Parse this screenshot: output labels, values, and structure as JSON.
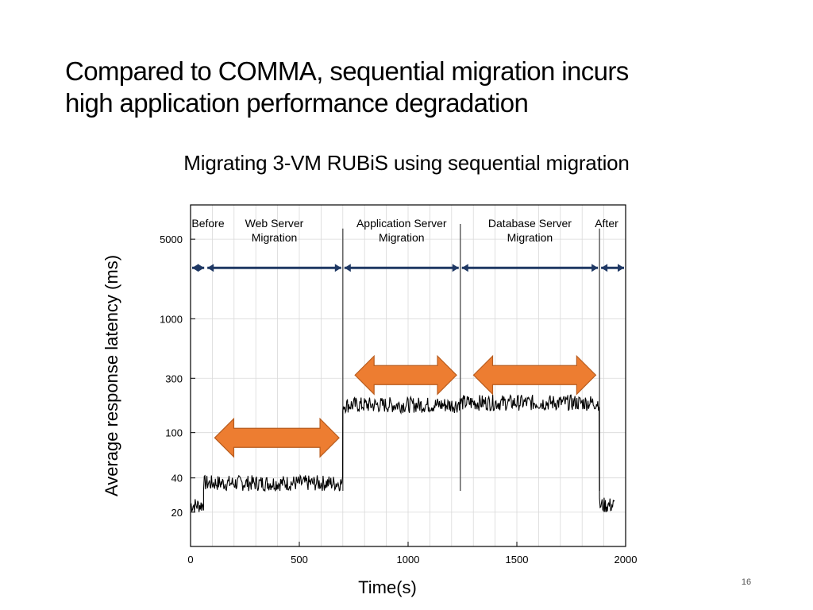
{
  "slide": {
    "title_lines": [
      "Compared to COMMA, sequential migration incurs",
      "high application performance degradation"
    ],
    "caption": "Migrating 3-VM RUBiS using sequential migration",
    "page_number": "16"
  },
  "chart_data": {
    "type": "line",
    "xlabel": "Time(s)",
    "ylabel": "Average response latency (ms)",
    "xlim": [
      0,
      2000
    ],
    "ylim": [
      10,
      10000
    ],
    "yscale": "log",
    "x_ticks": [
      {
        "value": 0,
        "label": "0"
      },
      {
        "value": 500,
        "label": "500"
      },
      {
        "value": 1000,
        "label": "1000"
      },
      {
        "value": 1500,
        "label": "1500"
      },
      {
        "value": 2000,
        "label": "2000"
      }
    ],
    "y_ticks": [
      {
        "value": 20,
        "label": "20"
      },
      {
        "value": 40,
        "label": "40"
      },
      {
        "value": 100,
        "label": "100"
      },
      {
        "value": 300,
        "label": "300"
      },
      {
        "value": 1000,
        "label": "1000"
      },
      {
        "value": 5000,
        "label": "5000"
      }
    ],
    "grid": true,
    "phases": [
      {
        "label": [
          "Before"
        ],
        "start": 0,
        "end": 70
      },
      {
        "label": [
          "Web Server",
          "Migration"
        ],
        "start": 70,
        "end": 700
      },
      {
        "label": [
          "Application Server",
          "Migration"
        ],
        "start": 700,
        "end": 1240
      },
      {
        "label": [
          "Database Server",
          "Migration"
        ],
        "start": 1240,
        "end": 1880
      },
      {
        "label": [
          "After"
        ],
        "start": 1880,
        "end": 2000
      }
    ],
    "phase_arrow_level": 2800,
    "spikes": [
      {
        "x": 700,
        "y": 6200
      },
      {
        "x": 1240,
        "y": 6800
      },
      {
        "x": 1880,
        "y": 6200
      }
    ],
    "series": [
      {
        "segments": [
          {
            "x_start": 0,
            "x_end": 60,
            "mean": 23
          },
          {
            "x_start": 60,
            "x_end": 700,
            "mean": 36
          },
          {
            "x_start": 700,
            "x_end": 1230,
            "mean": 175
          },
          {
            "x_start": 1230,
            "x_end": 1880,
            "mean": 183
          },
          {
            "x_start": 1880,
            "x_end": 1950,
            "mean": 23
          }
        ]
      }
    ],
    "highlight_arrows": [
      {
        "x_start": 60,
        "x_end": 690,
        "y": 90
      },
      {
        "x_start": 705,
        "x_end": 1230,
        "y": 320
      },
      {
        "x_start": 1250,
        "x_end": 1870,
        "y": 320
      }
    ],
    "colors": {
      "highlight": "#ED7D31",
      "highlight_edge": "#B85C1E",
      "phase_arrow": "#1F3864",
      "series": "#000000",
      "grid": "#d9d9d9"
    }
  }
}
